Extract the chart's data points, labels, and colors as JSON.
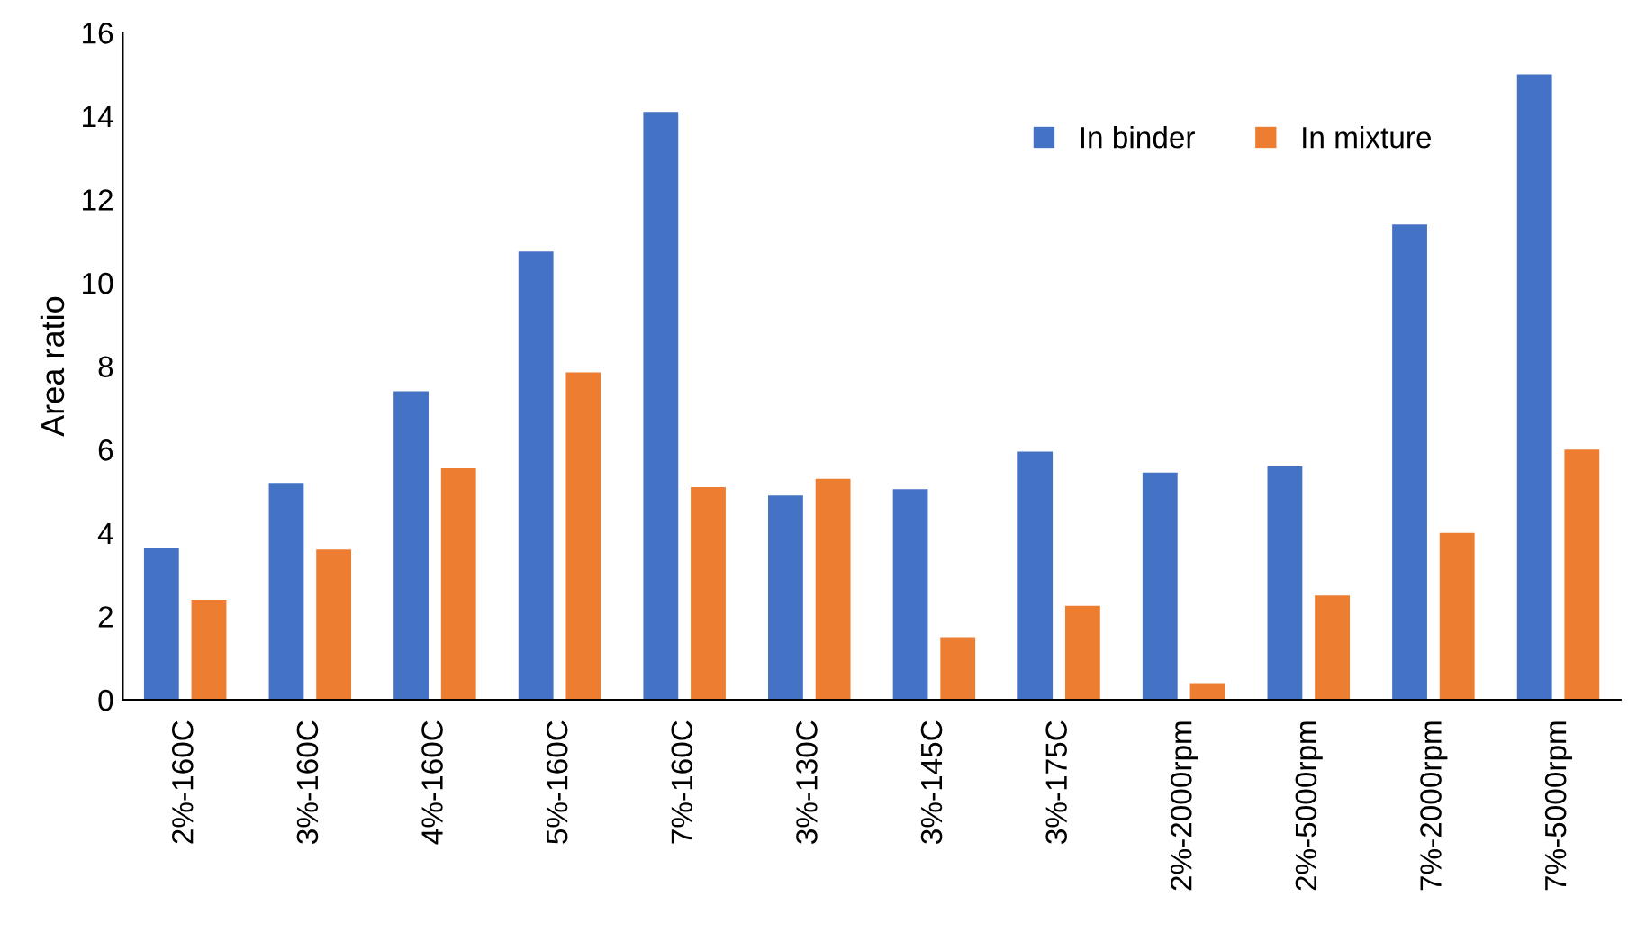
{
  "chart_data": {
    "type": "bar",
    "ylabel": "Area ratio",
    "categories": [
      "2%-160C",
      "3%-160C",
      "4%-160C",
      "5%-160C",
      "7%-160C",
      "3%-130C",
      "3%-145C",
      "3%-175C",
      "2%-2000rpm",
      "2%-5000rpm",
      "7%-2000rpm",
      "7%-5000rpm"
    ],
    "series": [
      {
        "name": "In binder",
        "color": "#4472c4",
        "values": [
          3.65,
          5.2,
          7.4,
          10.75,
          14.1,
          4.9,
          5.05,
          5.95,
          5.45,
          5.6,
          11.4,
          15.0
        ]
      },
      {
        "name": "In mixture",
        "color": "#ed7d31",
        "values": [
          2.4,
          3.6,
          5.55,
          7.85,
          5.1,
          5.3,
          1.5,
          2.25,
          0.4,
          2.5,
          4.0,
          6.0
        ]
      }
    ],
    "ylim": [
      0,
      16
    ],
    "yticks": [
      0,
      2,
      4,
      6,
      8,
      10,
      12,
      14,
      16
    ],
    "grid": false,
    "legend": "top right"
  }
}
